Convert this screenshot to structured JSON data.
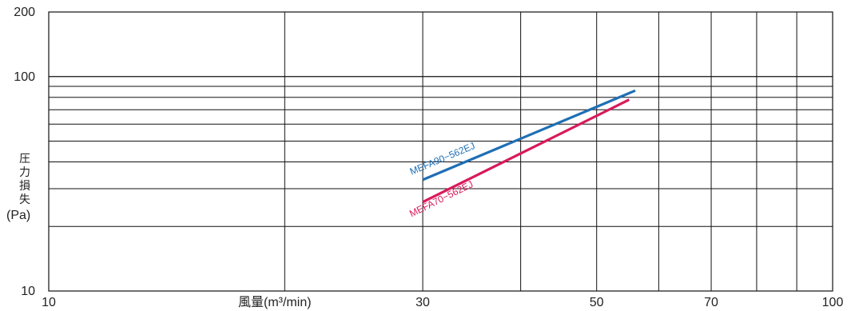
{
  "chart_data": {
    "type": "line",
    "title": "",
    "xlabel": "風量(m³/min)",
    "ylabel_chars": [
      "圧",
      "力",
      "損",
      "失"
    ],
    "ylabel_unit": "(Pa)",
    "x_scale": "log",
    "y_scale": "log",
    "xlim": [
      10,
      100
    ],
    "ylim": [
      10,
      200
    ],
    "x_tick_labels": [
      "10",
      "30",
      "50",
      "70",
      "100"
    ],
    "y_tick_labels": [
      "10",
      "100",
      "200"
    ],
    "x_gridlines": [
      20,
      30,
      40,
      50,
      60,
      70,
      80,
      90
    ],
    "y_gridlines": [
      20,
      30,
      40,
      50,
      60,
      70,
      80,
      90
    ],
    "grid": true,
    "series": [
      {
        "name": "MEFA90−562EJ",
        "color": "#1f6fb5",
        "x": [
          30,
          56
        ],
        "y": [
          33,
          86
        ]
      },
      {
        "name": "MEFA70−562EJ",
        "color": "#d81b5b",
        "x": [
          30,
          55
        ],
        "y": [
          26,
          78
        ]
      }
    ]
  }
}
